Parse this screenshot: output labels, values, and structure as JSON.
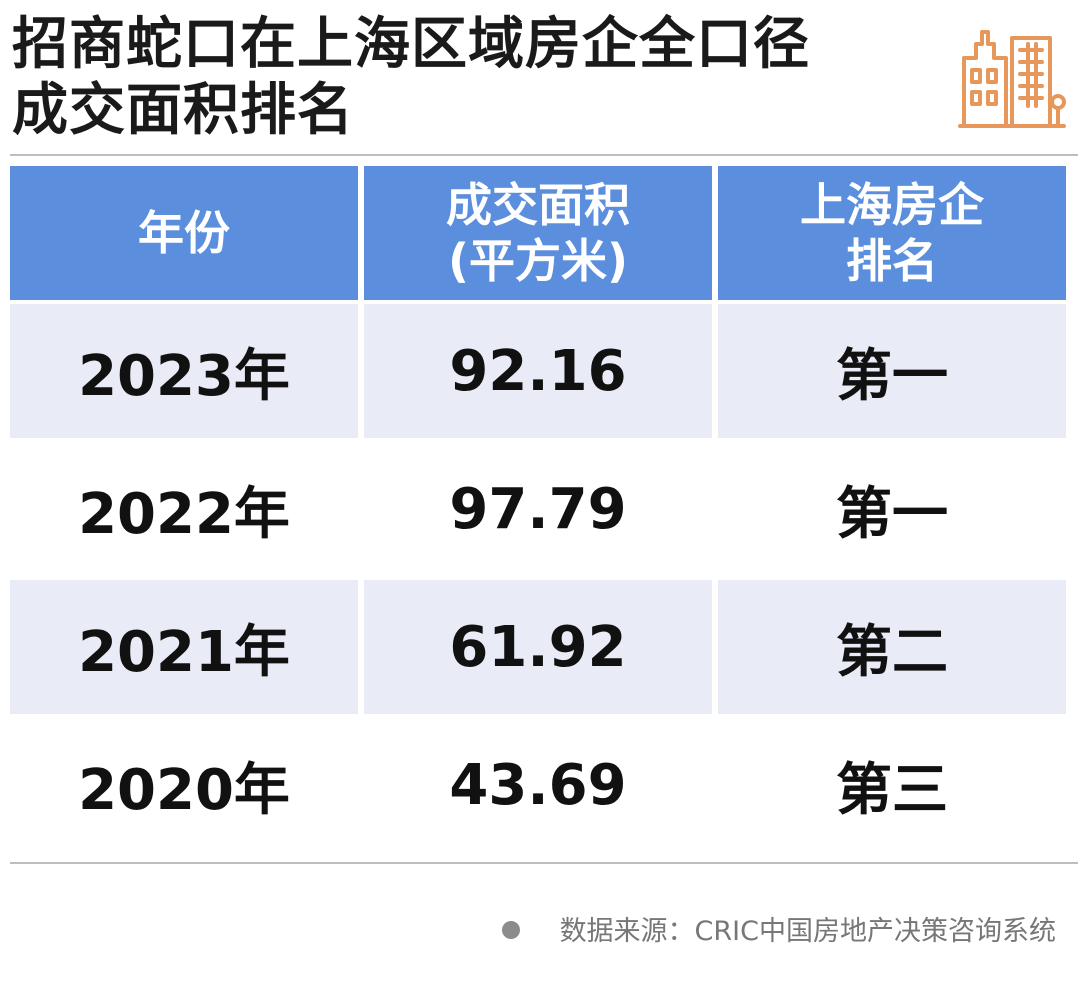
{
  "title": {
    "line1": "招商蛇口在上海区域房企全口径",
    "line2": "成交面积排名"
  },
  "icon": "building-icon",
  "chart_data": {
    "type": "table",
    "title": "招商蛇口在上海区域房企全口径成交面积排名",
    "columns": [
      {
        "line1": "年份",
        "line2": ""
      },
      {
        "line1": "成交面积",
        "line2": "(平方米)"
      },
      {
        "line1": "上海房企",
        "line2": "排名"
      }
    ],
    "rows": [
      {
        "year": "2023年",
        "area": "92.16",
        "rank": "第一"
      },
      {
        "year": "2022年",
        "area": "97.79",
        "rank": "第一"
      },
      {
        "year": "2021年",
        "area": "61.92",
        "rank": "第二"
      },
      {
        "year": "2020年",
        "area": "43.69",
        "rank": "第三"
      }
    ]
  },
  "source": "数据来源：CRIC中国房地产决策咨询系统",
  "colors": {
    "header_bg": "#5b8fdd",
    "row_shade": "#e9ecf7",
    "icon_orange": "#e8975a"
  }
}
